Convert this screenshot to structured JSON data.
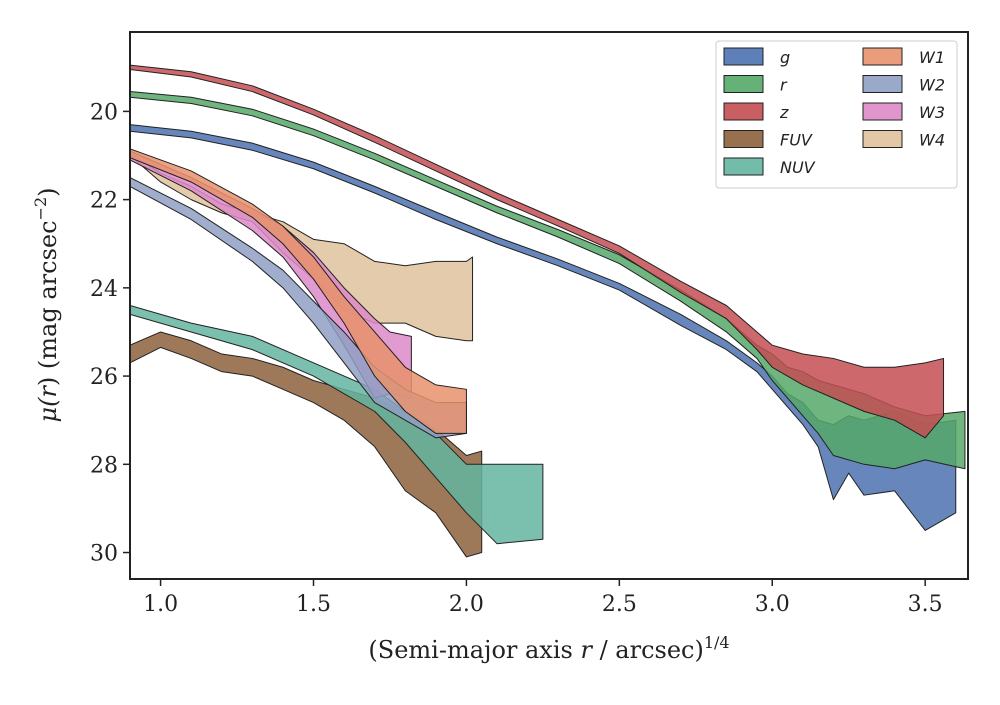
{
  "chart_data": {
    "type": "area",
    "xlabel_parts": {
      "pre": "(Semi-major axis ",
      "var": "r",
      "post": " / arcsec)",
      "sup": "1/4"
    },
    "ylabel_parts": {
      "pre": "μ(",
      "var": "r",
      "mid": ") (mag arcsec",
      "sup": "−2",
      "post": ")"
    },
    "xlim": [
      0.9,
      3.64
    ],
    "ylim": [
      30.6,
      18.2
    ],
    "y_inverted": true,
    "xticks": [
      1.0,
      1.5,
      2.0,
      2.5,
      3.0,
      3.5
    ],
    "xtick_labels": [
      "1.0",
      "1.5",
      "2.0",
      "2.5",
      "3.0",
      "3.5"
    ],
    "yticks": [
      20,
      22,
      24,
      26,
      28,
      30
    ],
    "ytick_labels": [
      "20",
      "22",
      "24",
      "26",
      "28",
      "30"
    ],
    "grid": false,
    "legend_position": "top-right",
    "legend_columns": 2,
    "series": [
      {
        "name": "g",
        "color": "#4c72b0",
        "upper": [
          [
            0.9,
            20.3
          ],
          [
            1.1,
            20.45
          ],
          [
            1.3,
            20.72
          ],
          [
            1.5,
            21.15
          ],
          [
            1.7,
            21.7
          ],
          [
            1.9,
            22.28
          ],
          [
            2.1,
            22.85
          ],
          [
            2.3,
            23.35
          ],
          [
            2.5,
            23.9
          ],
          [
            2.7,
            24.6
          ],
          [
            2.85,
            25.2
          ],
          [
            2.95,
            25.7
          ],
          [
            3.0,
            26.0
          ],
          [
            3.05,
            26.4
          ],
          [
            3.1,
            26.6
          ],
          [
            3.15,
            27.0
          ],
          [
            3.2,
            27.1
          ],
          [
            3.25,
            26.9
          ],
          [
            3.3,
            27.0
          ],
          [
            3.4,
            26.8
          ],
          [
            3.5,
            27.1
          ],
          [
            3.6,
            27.0
          ]
        ],
        "lower": [
          [
            0.9,
            20.45
          ],
          [
            1.1,
            20.6
          ],
          [
            1.3,
            20.88
          ],
          [
            1.5,
            21.3
          ],
          [
            1.7,
            21.85
          ],
          [
            1.9,
            22.45
          ],
          [
            2.1,
            23.0
          ],
          [
            2.3,
            23.5
          ],
          [
            2.5,
            24.05
          ],
          [
            2.7,
            24.85
          ],
          [
            2.85,
            25.4
          ],
          [
            2.95,
            25.9
          ],
          [
            3.0,
            26.3
          ],
          [
            3.05,
            26.7
          ],
          [
            3.1,
            27.1
          ],
          [
            3.15,
            27.6
          ],
          [
            3.2,
            28.8
          ],
          [
            3.25,
            28.2
          ],
          [
            3.3,
            28.7
          ],
          [
            3.4,
            28.6
          ],
          [
            3.5,
            29.5
          ],
          [
            3.6,
            29.1
          ]
        ]
      },
      {
        "name": "r",
        "color": "#55a868",
        "upper": [
          [
            0.9,
            19.55
          ],
          [
            1.1,
            19.68
          ],
          [
            1.3,
            19.95
          ],
          [
            1.5,
            20.4
          ],
          [
            1.7,
            20.95
          ],
          [
            1.9,
            21.55
          ],
          [
            2.1,
            22.15
          ],
          [
            2.3,
            22.68
          ],
          [
            2.5,
            23.25
          ],
          [
            2.7,
            24.05
          ],
          [
            2.85,
            24.7
          ],
          [
            2.95,
            25.3
          ],
          [
            3.0,
            25.5
          ],
          [
            3.05,
            25.8
          ],
          [
            3.1,
            25.9
          ],
          [
            3.15,
            26.1
          ],
          [
            3.2,
            26.2
          ],
          [
            3.3,
            26.4
          ],
          [
            3.4,
            26.7
          ],
          [
            3.5,
            26.9
          ],
          [
            3.63,
            26.8
          ]
        ],
        "lower": [
          [
            0.9,
            19.68
          ],
          [
            1.1,
            19.82
          ],
          [
            1.3,
            20.1
          ],
          [
            1.5,
            20.55
          ],
          [
            1.7,
            21.1
          ],
          [
            1.9,
            21.7
          ],
          [
            2.1,
            22.3
          ],
          [
            2.3,
            22.85
          ],
          [
            2.5,
            23.45
          ],
          [
            2.7,
            24.3
          ],
          [
            2.85,
            25.0
          ],
          [
            2.95,
            25.6
          ],
          [
            3.0,
            26.1
          ],
          [
            3.05,
            26.5
          ],
          [
            3.1,
            26.9
          ],
          [
            3.15,
            27.3
          ],
          [
            3.2,
            27.8
          ],
          [
            3.3,
            28.0
          ],
          [
            3.4,
            28.1
          ],
          [
            3.5,
            27.9
          ],
          [
            3.63,
            28.1
          ]
        ]
      },
      {
        "name": "z",
        "color": "#c44e52",
        "upper": [
          [
            0.9,
            18.95
          ],
          [
            1.1,
            19.1
          ],
          [
            1.3,
            19.42
          ],
          [
            1.5,
            19.95
          ],
          [
            1.7,
            20.55
          ],
          [
            1.9,
            21.2
          ],
          [
            2.1,
            21.85
          ],
          [
            2.3,
            22.45
          ],
          [
            2.5,
            23.05
          ],
          [
            2.7,
            23.85
          ],
          [
            2.85,
            24.4
          ],
          [
            2.95,
            25.0
          ],
          [
            3.0,
            25.3
          ],
          [
            3.1,
            25.5
          ],
          [
            3.2,
            25.6
          ],
          [
            3.3,
            25.8
          ],
          [
            3.4,
            25.8
          ],
          [
            3.5,
            25.7
          ],
          [
            3.56,
            25.6
          ]
        ],
        "lower": [
          [
            0.9,
            19.05
          ],
          [
            1.1,
            19.22
          ],
          [
            1.3,
            19.55
          ],
          [
            1.5,
            20.08
          ],
          [
            1.7,
            20.7
          ],
          [
            1.9,
            21.35
          ],
          [
            2.1,
            22.0
          ],
          [
            2.3,
            22.6
          ],
          [
            2.5,
            23.22
          ],
          [
            2.7,
            24.1
          ],
          [
            2.85,
            24.7
          ],
          [
            2.95,
            25.4
          ],
          [
            3.0,
            25.8
          ],
          [
            3.1,
            26.2
          ],
          [
            3.2,
            26.5
          ],
          [
            3.3,
            26.8
          ],
          [
            3.4,
            27.0
          ],
          [
            3.5,
            27.4
          ],
          [
            3.56,
            26.9
          ]
        ]
      },
      {
        "name": "FUV",
        "color": "#8c613c",
        "upper": [
          [
            0.9,
            25.3
          ],
          [
            1.0,
            25.0
          ],
          [
            1.1,
            25.2
          ],
          [
            1.2,
            25.5
          ],
          [
            1.3,
            25.6
          ],
          [
            1.4,
            25.8
          ],
          [
            1.5,
            26.1
          ],
          [
            1.6,
            26.3
          ],
          [
            1.7,
            26.5
          ],
          [
            1.8,
            26.8
          ],
          [
            1.9,
            27.2
          ],
          [
            2.0,
            27.8
          ],
          [
            2.05,
            27.7
          ]
        ],
        "lower": [
          [
            0.9,
            25.7
          ],
          [
            1.0,
            25.35
          ],
          [
            1.1,
            25.6
          ],
          [
            1.2,
            25.9
          ],
          [
            1.3,
            26.0
          ],
          [
            1.4,
            26.3
          ],
          [
            1.5,
            26.6
          ],
          [
            1.6,
            27.0
          ],
          [
            1.7,
            27.6
          ],
          [
            1.8,
            28.6
          ],
          [
            1.9,
            29.1
          ],
          [
            2.0,
            30.1
          ],
          [
            2.05,
            30.0
          ]
        ]
      },
      {
        "name": "NUV",
        "color": "#64b5a0",
        "upper": [
          [
            0.9,
            24.4
          ],
          [
            1.1,
            24.8
          ],
          [
            1.3,
            25.1
          ],
          [
            1.5,
            25.7
          ],
          [
            1.7,
            26.3
          ],
          [
            1.8,
            26.8
          ],
          [
            1.9,
            27.3
          ],
          [
            2.0,
            28.0
          ],
          [
            2.1,
            28.0
          ],
          [
            2.25,
            28.0
          ]
        ],
        "lower": [
          [
            0.9,
            24.6
          ],
          [
            1.1,
            25.0
          ],
          [
            1.3,
            25.4
          ],
          [
            1.5,
            26.0
          ],
          [
            1.7,
            26.8
          ],
          [
            1.8,
            27.5
          ],
          [
            1.9,
            28.3
          ],
          [
            2.0,
            29.1
          ],
          [
            2.1,
            29.8
          ],
          [
            2.25,
            29.7
          ]
        ]
      },
      {
        "name": "W1",
        "color": "#e8926c",
        "upper": [
          [
            0.9,
            20.85
          ],
          [
            1.1,
            21.35
          ],
          [
            1.3,
            22.1
          ],
          [
            1.4,
            22.6
          ],
          [
            1.5,
            23.3
          ],
          [
            1.6,
            24.2
          ],
          [
            1.7,
            25.0
          ],
          [
            1.8,
            25.8
          ],
          [
            1.9,
            26.2
          ],
          [
            2.0,
            26.3
          ]
        ],
        "lower": [
          [
            0.9,
            21.05
          ],
          [
            1.1,
            21.6
          ],
          [
            1.3,
            22.4
          ],
          [
            1.4,
            23.0
          ],
          [
            1.5,
            23.8
          ],
          [
            1.6,
            24.8
          ],
          [
            1.7,
            26.0
          ],
          [
            1.8,
            26.8
          ],
          [
            1.9,
            27.3
          ],
          [
            2.0,
            27.3
          ]
        ]
      },
      {
        "name": "W2",
        "color": "#8f9fc3",
        "upper": [
          [
            0.9,
            21.5
          ],
          [
            1.1,
            22.2
          ],
          [
            1.3,
            23.1
          ],
          [
            1.4,
            23.6
          ],
          [
            1.5,
            24.3
          ],
          [
            1.6,
            25.0
          ],
          [
            1.7,
            25.8
          ],
          [
            1.8,
            26.3
          ],
          [
            1.9,
            26.6
          ],
          [
            2.0,
            26.6
          ]
        ],
        "lower": [
          [
            0.9,
            21.7
          ],
          [
            1.1,
            22.45
          ],
          [
            1.3,
            23.4
          ],
          [
            1.4,
            24.0
          ],
          [
            1.5,
            24.8
          ],
          [
            1.6,
            25.7
          ],
          [
            1.7,
            26.6
          ],
          [
            1.8,
            27.0
          ],
          [
            1.9,
            27.4
          ],
          [
            2.0,
            27.3
          ]
        ]
      },
      {
        "name": "W3",
        "color": "#dd8ac8",
        "upper": [
          [
            0.9,
            20.9
          ],
          [
            1.1,
            21.5
          ],
          [
            1.3,
            22.2
          ],
          [
            1.4,
            22.6
          ],
          [
            1.5,
            23.2
          ],
          [
            1.6,
            24.0
          ],
          [
            1.7,
            24.7
          ],
          [
            1.75,
            25.0
          ],
          [
            1.82,
            25.1
          ]
        ],
        "lower": [
          [
            0.9,
            21.1
          ],
          [
            1.1,
            21.8
          ],
          [
            1.3,
            22.7
          ],
          [
            1.4,
            23.3
          ],
          [
            1.5,
            24.2
          ],
          [
            1.6,
            25.3
          ],
          [
            1.7,
            26.5
          ],
          [
            1.75,
            26.4
          ],
          [
            1.82,
            26.5
          ]
        ]
      },
      {
        "name": "W4",
        "color": "#dfc29c",
        "upper": [
          [
            0.9,
            20.95
          ],
          [
            1.0,
            21.4
          ],
          [
            1.1,
            21.7
          ],
          [
            1.2,
            22.1
          ],
          [
            1.3,
            22.3
          ],
          [
            1.4,
            22.5
          ],
          [
            1.5,
            22.9
          ],
          [
            1.6,
            23.0
          ],
          [
            1.7,
            23.4
          ],
          [
            1.8,
            23.5
          ],
          [
            1.9,
            23.4
          ],
          [
            2.0,
            23.4
          ],
          [
            2.02,
            23.3
          ]
        ],
        "lower": [
          [
            0.9,
            21.0
          ],
          [
            1.0,
            21.6
          ],
          [
            1.1,
            22.0
          ],
          [
            1.2,
            22.3
          ],
          [
            1.3,
            22.5
          ],
          [
            1.4,
            23.2
          ],
          [
            1.5,
            23.8
          ],
          [
            1.6,
            24.5
          ],
          [
            1.7,
            24.8
          ],
          [
            1.8,
            24.8
          ],
          [
            1.9,
            25.1
          ],
          [
            2.0,
            25.2
          ],
          [
            2.02,
            25.2
          ]
        ]
      }
    ]
  }
}
